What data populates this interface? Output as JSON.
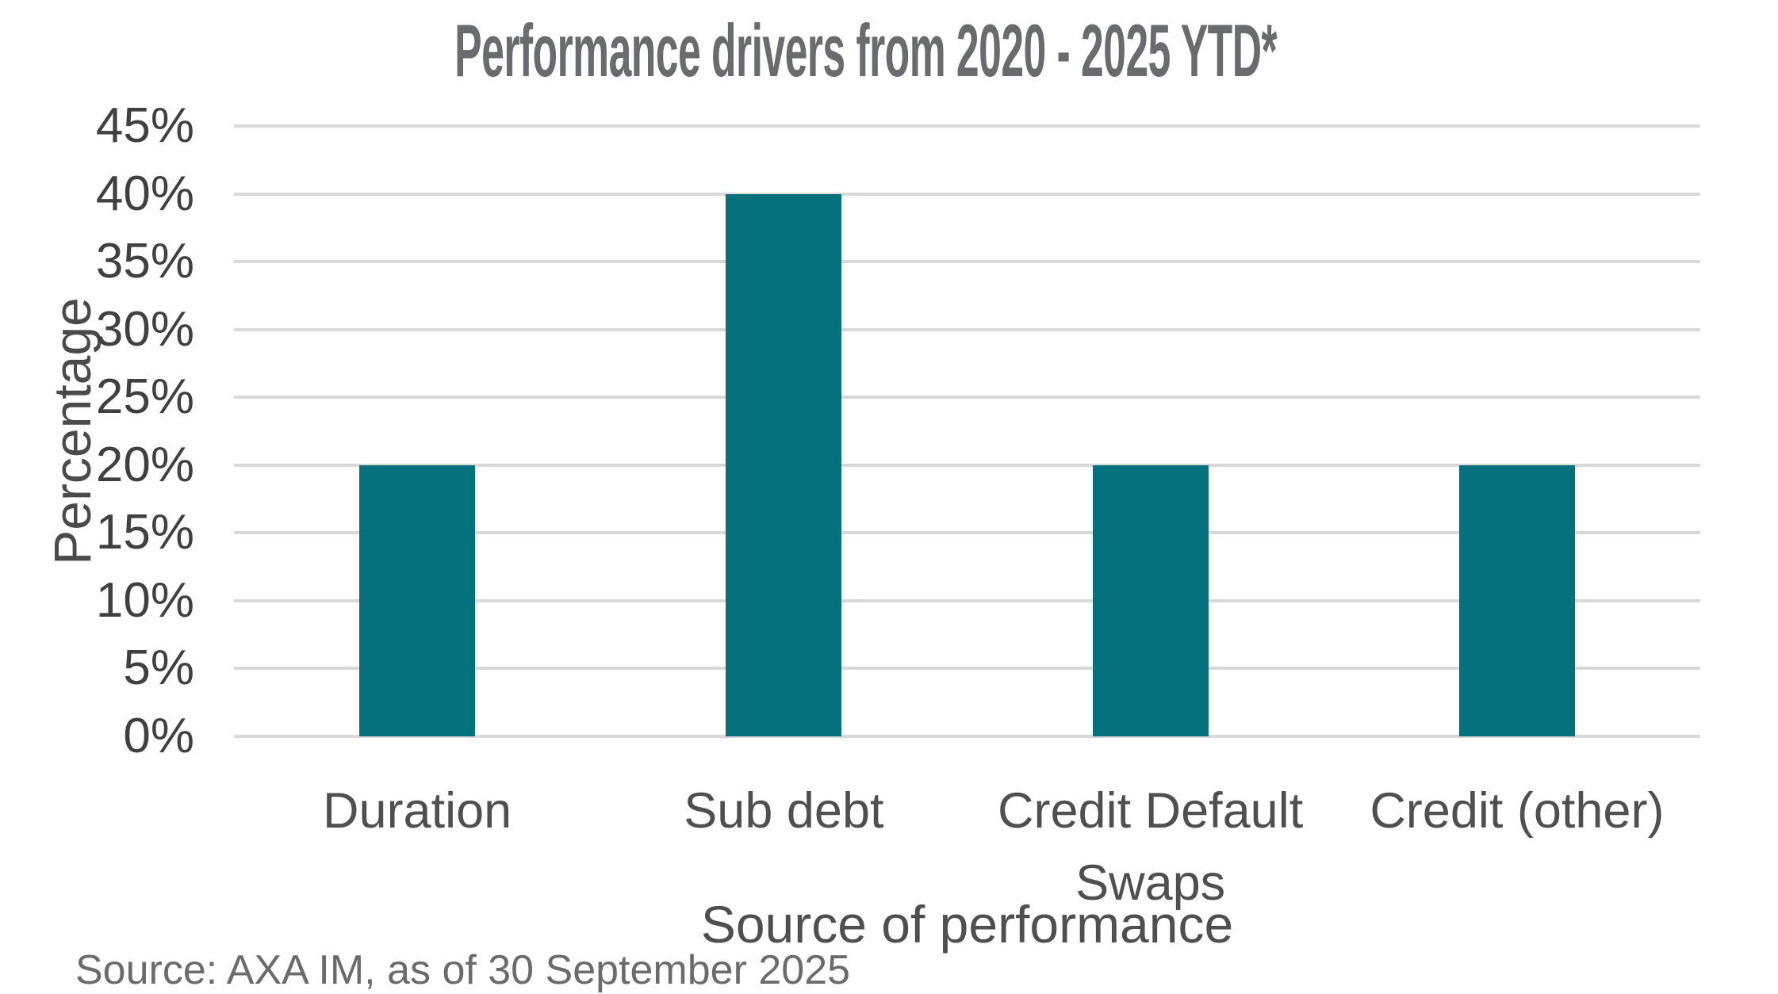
{
  "title": "Performance drivers from 2020 - 2025 YTD*",
  "footer": {
    "source": "Source: AXA IM, as of 30 September 2025"
  },
  "chart_data": {
    "type": "bar",
    "title": "Performance drivers from 2020 - 2025 YTD*",
    "categories": [
      "Duration",
      "Sub debt",
      "Credit Default Swaps",
      "Credit (other)"
    ],
    "values": [
      20,
      40,
      20,
      20
    ],
    "xlabel": "Source of performance",
    "ylabel": "Percentage",
    "ylim": [
      0,
      45
    ],
    "yticks": [
      0,
      5,
      10,
      15,
      20,
      25,
      30,
      35,
      40,
      45
    ],
    "ytick_suffix": "%",
    "grid": true,
    "legend_position": "none",
    "colors": {
      "bar": "#04717c",
      "gridline": "#d9d9d9",
      "title_text": "#6a6b6e",
      "axis_text": "#404040",
      "label_text": "#4f4f4f",
      "source_text": "#6b6b6b",
      "background": "#ffffff"
    }
  }
}
